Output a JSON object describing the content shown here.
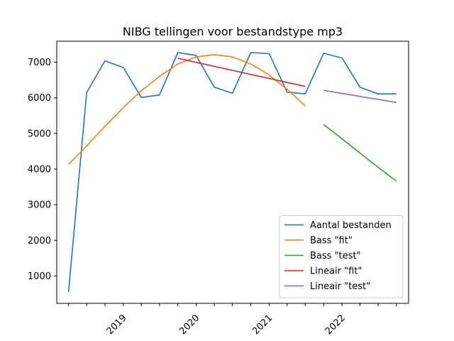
{
  "chart_data": {
    "type": "line",
    "title": "NIBG tellingen voor bestandstype mp3",
    "xlabel": "",
    "ylabel": "",
    "x_tick_labels": [
      "2019",
      "2020",
      "2021",
      "2022"
    ],
    "x_tick_dates": [
      "2019-01-01",
      "2020-01-01",
      "2021-01-01",
      "2022-01-01"
    ],
    "x_minor_tick_dates": [
      "2018-04-01",
      "2018-07-01",
      "2018-10-01",
      "2019-04-01",
      "2019-07-01",
      "2019-10-01",
      "2020-04-01",
      "2020-07-01",
      "2020-10-01",
      "2021-04-01",
      "2021-07-01",
      "2021-10-01",
      "2022-04-01",
      "2022-07-01",
      "2022-10-01"
    ],
    "xlim": [
      "2018-02-01",
      "2022-12-01"
    ],
    "y_ticks": [
      1000,
      2000,
      3000,
      4000,
      5000,
      6000,
      7000
    ],
    "ylim": [
      230,
      7590
    ],
    "legend_position": "lower right",
    "series": [
      {
        "name": "Aantal bestanden",
        "color": "#1f77b4",
        "x": [
          "2018-04-01",
          "2018-07-01",
          "2018-10-01",
          "2019-01-01",
          "2019-04-01",
          "2019-07-01",
          "2019-10-01",
          "2020-01-01",
          "2020-04-01",
          "2020-07-01",
          "2020-10-01",
          "2021-01-01",
          "2021-04-01",
          "2021-07-01",
          "2021-10-01",
          "2022-01-01",
          "2022-04-01",
          "2022-07-01",
          "2022-10-01"
        ],
        "y": [
          550,
          6150,
          7040,
          6850,
          6010,
          6080,
          7270,
          7190,
          6300,
          6130,
          7270,
          7240,
          6160,
          6110,
          7250,
          7120,
          6300,
          6110,
          6110
        ]
      },
      {
        "name": "Bass \"fit\"",
        "color": "#ff7f0e",
        "x": [
          "2018-04-01",
          "2018-07-01",
          "2018-10-01",
          "2019-01-01",
          "2019-04-01",
          "2019-07-01",
          "2019-10-01",
          "2020-01-01",
          "2020-04-01",
          "2020-07-01",
          "2020-10-01",
          "2021-01-01",
          "2021-04-01",
          "2021-07-01"
        ],
        "y": [
          4130,
          4650,
          5200,
          5730,
          6200,
          6600,
          6950,
          7150,
          7210,
          7150,
          6950,
          6640,
          6240,
          5770
        ]
      },
      {
        "name": "Bass \"test\"",
        "color": "#2ca02c",
        "x": [
          "2021-10-01",
          "2022-01-01",
          "2022-04-01",
          "2022-07-01",
          "2022-10-01"
        ],
        "y": [
          5250,
          4850,
          4450,
          4050,
          3660
        ]
      },
      {
        "name": "Lineair \"fit\"",
        "color": "#d62728",
        "x": [
          "2019-10-01",
          "2021-07-01"
        ],
        "y": [
          7110,
          6320
        ]
      },
      {
        "name": "Lineair \"test\"",
        "color": "#9467bd",
        "x": [
          "2021-10-01",
          "2022-10-01"
        ],
        "y": [
          6210,
          5870
        ]
      }
    ]
  }
}
